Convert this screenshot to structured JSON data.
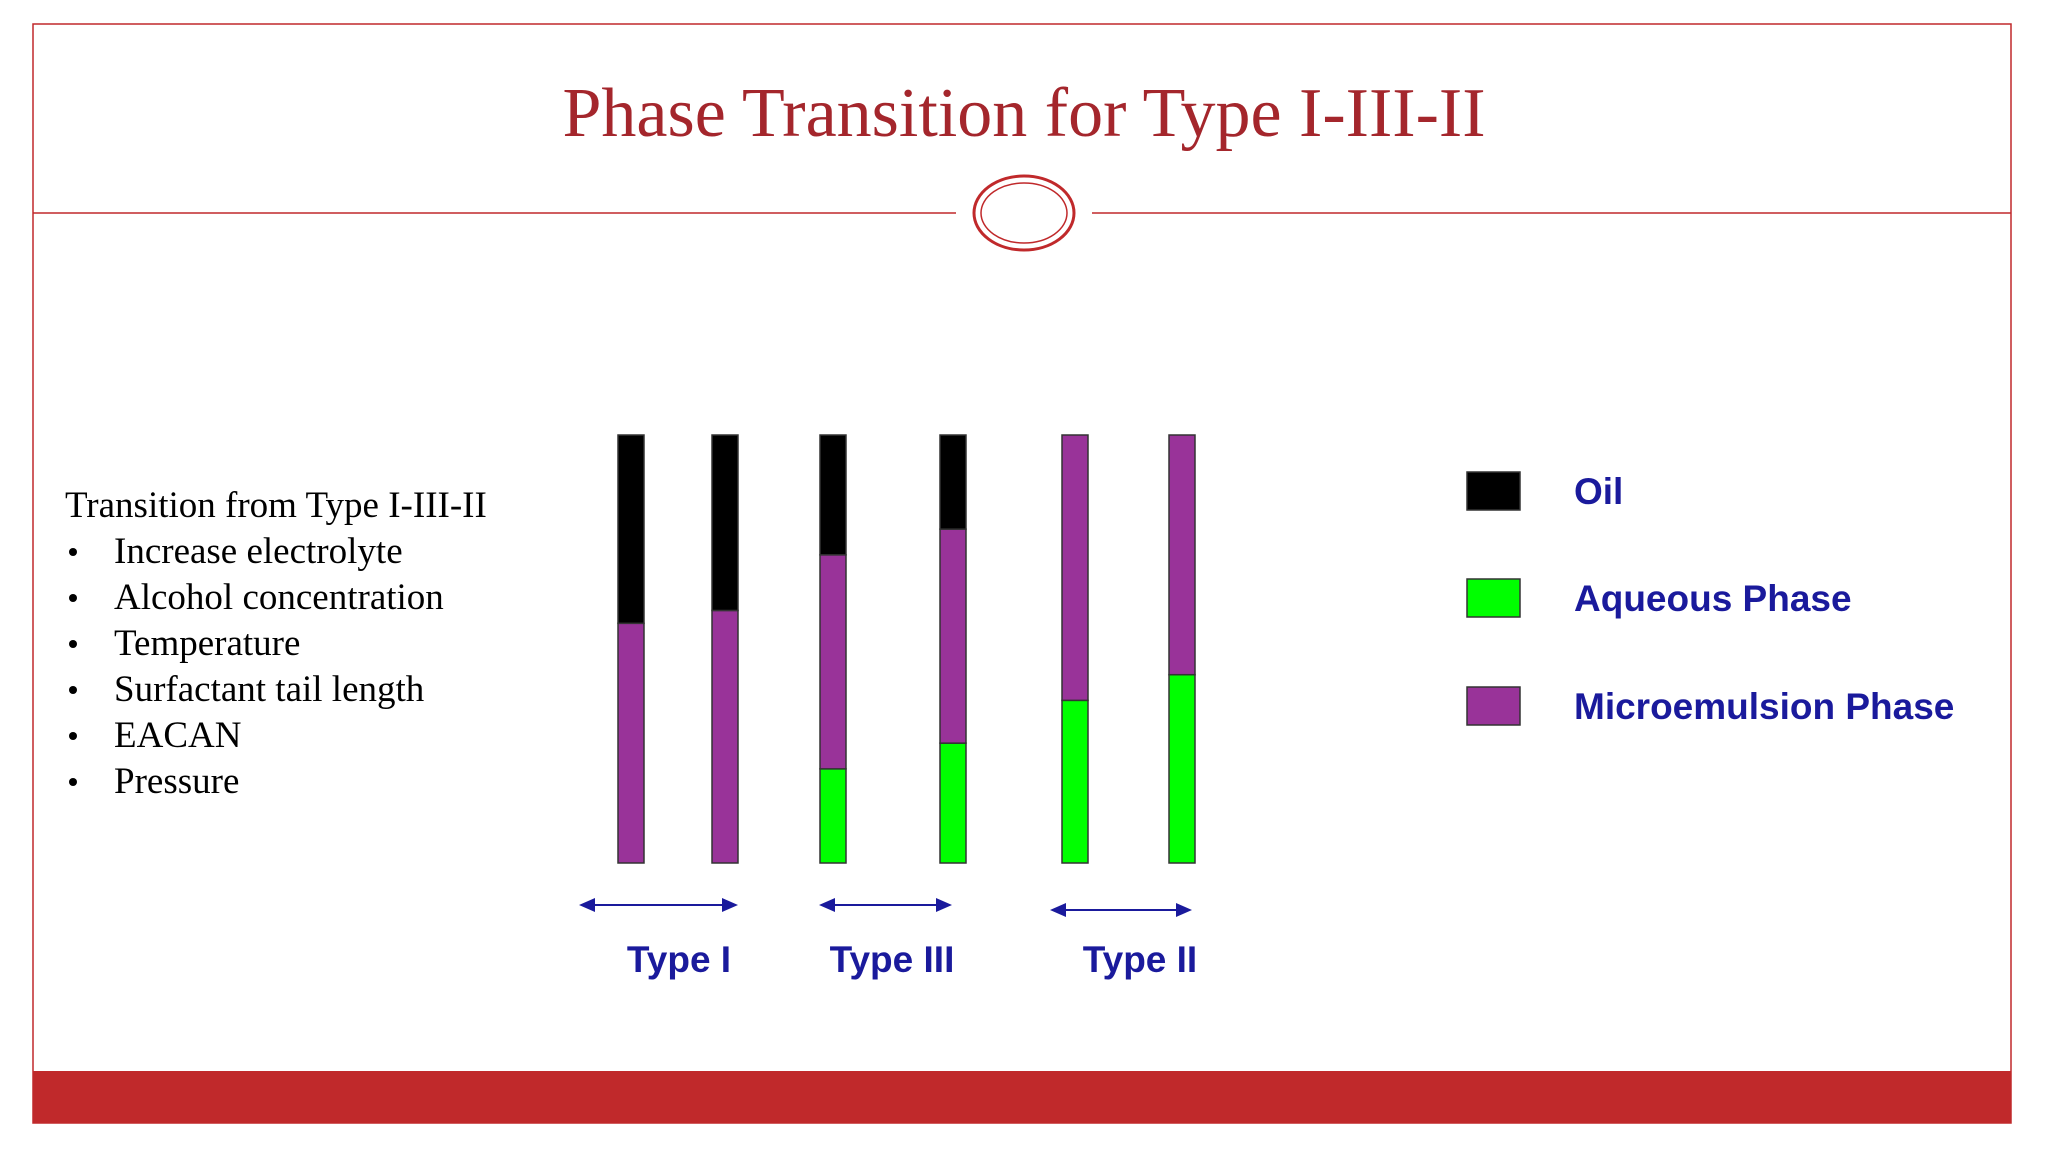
{
  "header": {
    "title": "Phase Transition for Type I-III-II"
  },
  "text": {
    "heading": "Transition from Type I-III-II",
    "bullets": [
      "Increase electrolyte",
      "Alcohol concentration",
      "Temperature",
      "Surfactant tail length",
      "EACAN",
      "Pressure"
    ]
  },
  "chart_data": {
    "type": "bar",
    "stacked": true,
    "categories": [
      null,
      null,
      null,
      null,
      null,
      null
    ],
    "group_labels": [
      "Type I",
      "Type III",
      "Type II"
    ],
    "ylim": [
      0,
      100
    ],
    "series": [
      {
        "name": "Oil",
        "color": "#000000",
        "values": [
          44,
          41,
          28,
          22,
          0,
          0
        ]
      },
      {
        "name": "Aqueous Phase",
        "color": "#00ff00",
        "values": [
          0,
          0,
          22,
          28,
          38,
          44
        ]
      },
      {
        "name": "Microemulsion Phase",
        "color": "#993399",
        "values": [
          56,
          59,
          50,
          50,
          62,
          56
        ]
      }
    ]
  }
}
